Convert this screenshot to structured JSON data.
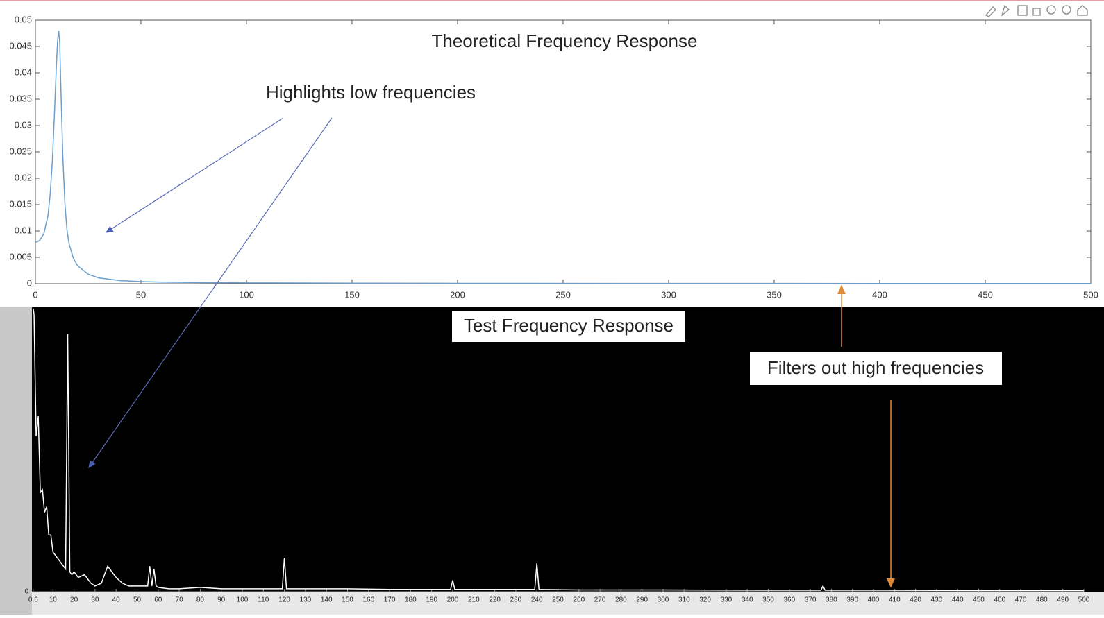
{
  "chart_data": [
    {
      "type": "line",
      "title": "Theoretical Frequency Response",
      "annotations": [
        "Highlights low frequencies"
      ],
      "x": [
        0,
        2,
        4,
        6,
        7,
        8,
        9,
        10,
        10.5,
        11,
        11.5,
        12,
        13,
        14,
        15,
        16,
        18,
        20,
        25,
        30,
        40,
        50,
        60,
        80,
        100,
        150,
        200,
        300,
        400,
        500
      ],
      "series": [
        {
          "color": "#6a9fcf",
          "values": [
            0.0078,
            0.0082,
            0.0095,
            0.013,
            0.017,
            0.023,
            0.032,
            0.042,
            0.046,
            0.048,
            0.046,
            0.038,
            0.024,
            0.015,
            0.01,
            0.0075,
            0.0048,
            0.0034,
            0.0018,
            0.0011,
            0.0006,
            0.0004,
            0.0003,
            0.0002,
            0.00015,
            0.0001,
            7e-05,
            5e-05,
            4e-05,
            3e-05
          ]
        }
      ],
      "xlim": [
        0,
        500
      ],
      "ylim": [
        0,
        0.05
      ],
      "xticks": [
        0,
        50,
        100,
        150,
        200,
        250,
        300,
        350,
        400,
        450,
        500
      ],
      "yticks": [
        0,
        0.005,
        0.01,
        0.015,
        0.02,
        0.025,
        0.03,
        0.035,
        0.04,
        0.045,
        0.05
      ]
    },
    {
      "type": "line",
      "title": "Test Frequency Response",
      "annotations": [
        "Filters out high frequencies"
      ],
      "x": [
        0.6,
        1,
        2,
        3,
        4,
        5,
        6,
        7,
        8,
        9,
        10,
        12,
        14,
        16,
        17,
        18,
        19,
        20,
        22,
        25,
        28,
        30,
        33,
        36,
        38,
        40,
        43,
        46,
        50,
        55,
        56,
        57,
        58,
        59,
        60,
        65,
        70,
        80,
        90,
        100,
        110,
        119,
        120,
        121,
        130,
        150,
        170,
        190,
        199,
        200,
        201,
        220,
        239,
        240,
        241,
        260,
        300,
        350,
        375,
        376,
        377,
        400,
        450,
        500
      ],
      "series": [
        {
          "color": "#ffffff",
          "values": [
            1.0,
            0.98,
            0.55,
            0.62,
            0.35,
            0.36,
            0.28,
            0.3,
            0.2,
            0.2,
            0.14,
            0.12,
            0.1,
            0.08,
            0.91,
            0.07,
            0.06,
            0.07,
            0.05,
            0.06,
            0.03,
            0.02,
            0.03,
            0.09,
            0.07,
            0.05,
            0.03,
            0.02,
            0.02,
            0.02,
            0.09,
            0.02,
            0.08,
            0.02,
            0.015,
            0.01,
            0.01,
            0.015,
            0.01,
            0.01,
            0.01,
            0.01,
            0.12,
            0.01,
            0.01,
            0.01,
            0.008,
            0.008,
            0.008,
            0.04,
            0.008,
            0.008,
            0.008,
            0.1,
            0.008,
            0.006,
            0.006,
            0.005,
            0.005,
            0.02,
            0.005,
            0.005,
            0.004,
            0.004
          ]
        }
      ],
      "xlim": [
        0,
        500
      ],
      "ylim": [
        0,
        1
      ],
      "xticks": [
        0.6,
        10,
        20,
        30,
        40,
        50,
        60,
        70,
        80,
        90,
        100,
        110,
        120,
        130,
        140,
        150,
        160,
        170,
        180,
        190,
        200,
        210,
        220,
        230,
        240,
        250,
        260,
        270,
        280,
        290,
        300,
        310,
        320,
        330,
        340,
        350,
        360,
        370,
        380,
        390,
        400,
        410,
        420,
        430,
        440,
        450,
        460,
        470,
        480,
        490,
        500
      ],
      "yticks": [
        0
      ]
    }
  ]
}
